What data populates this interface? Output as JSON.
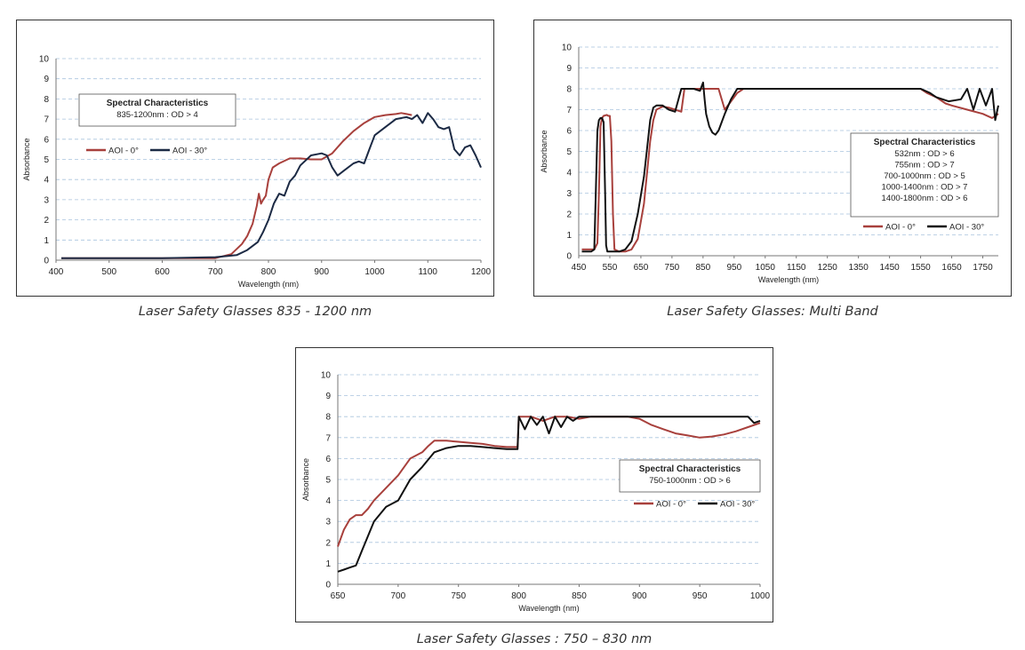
{
  "captions": [
    "Laser Safety Glasses 835 - 1200 nm",
    "Laser Safety Glasses: Multi Band",
    "Laser Safety Glasses : 750 – 830 nm"
  ],
  "chart_data": [
    {
      "type": "line",
      "xlabel": "Wavelength (nm)",
      "ylabel": "Absorbance",
      "xlim": [
        400,
        1200
      ],
      "ylim": [
        0,
        10
      ],
      "xticks": [
        400,
        500,
        600,
        700,
        800,
        900,
        1000,
        1100,
        1200
      ],
      "yticks": [
        0,
        1,
        2,
        3,
        4,
        5,
        6,
        7,
        8,
        9,
        10
      ],
      "grid": true,
      "legend_position": "left",
      "box": {
        "title": "Spectral Characteristics",
        "lines": [
          "835-1200nm : OD > 4"
        ]
      },
      "series": [
        {
          "name": "AOI - 0°",
          "color": "#a8403c",
          "x": [
            410,
            450,
            500,
            600,
            700,
            730,
            750,
            760,
            770,
            778,
            782,
            786,
            790,
            795,
            800,
            808,
            820,
            840,
            860,
            880,
            900,
            920,
            940,
            960,
            980,
            1000,
            1020,
            1040,
            1050,
            1060,
            1070
          ],
          "y": [
            0.1,
            0.1,
            0.1,
            0.1,
            0.1,
            0.3,
            0.8,
            1.2,
            1.8,
            2.7,
            3.3,
            2.8,
            3.0,
            3.2,
            4.0,
            4.6,
            4.8,
            5.05,
            5.05,
            5.0,
            5.0,
            5.3,
            5.9,
            6.4,
            6.8,
            7.1,
            7.2,
            7.25,
            7.3,
            7.25,
            7.2
          ]
        },
        {
          "name": "AOI - 30°",
          "color": "#1c2a44",
          "x": [
            410,
            450,
            500,
            600,
            700,
            740,
            760,
            780,
            790,
            800,
            810,
            820,
            830,
            840,
            850,
            860,
            880,
            900,
            910,
            920,
            930,
            940,
            960,
            970,
            980,
            990,
            1000,
            1020,
            1040,
            1060,
            1070,
            1080,
            1090,
            1100,
            1110,
            1120,
            1130,
            1140,
            1150,
            1160,
            1170,
            1180,
            1190,
            1200
          ],
          "y": [
            0.1,
            0.1,
            0.1,
            0.1,
            0.15,
            0.25,
            0.5,
            0.9,
            1.4,
            2.0,
            2.8,
            3.3,
            3.2,
            3.9,
            4.2,
            4.7,
            5.2,
            5.3,
            5.2,
            4.6,
            4.2,
            4.4,
            4.8,
            4.9,
            4.8,
            5.5,
            6.2,
            6.6,
            7.0,
            7.1,
            7.0,
            7.2,
            6.8,
            7.3,
            7.0,
            6.6,
            6.5,
            6.6,
            5.5,
            5.2,
            5.6,
            5.7,
            5.2,
            4.6
          ]
        }
      ]
    },
    {
      "type": "line",
      "xlabel": "Wavelength (nm)",
      "ylabel": "Absorbance",
      "xlim": [
        450,
        1800
      ],
      "ylim": [
        0,
        10
      ],
      "xticks": [
        450,
        550,
        650,
        750,
        850,
        950,
        1050,
        1150,
        1250,
        1350,
        1450,
        1550,
        1650,
        1750
      ],
      "yticks": [
        0,
        1,
        2,
        3,
        4,
        5,
        6,
        7,
        8,
        9,
        10
      ],
      "grid": true,
      "legend_position": "bottom-right",
      "box": {
        "title": "Spectral Characteristics",
        "lines": [
          "532nm : OD > 6",
          "755nm : OD > 7",
          "700-1000nm : OD > 5",
          "1000-1400nm : OD > 7",
          "1400-1800nm : OD > 6"
        ]
      },
      "series": [
        {
          "name": "AOI - 0°",
          "color": "#a8403c",
          "x": [
            460,
            500,
            510,
            515,
            520,
            525,
            530,
            540,
            545,
            550,
            555,
            560,
            565,
            580,
            600,
            620,
            640,
            660,
            670,
            680,
            690,
            700,
            720,
            740,
            760,
            780,
            790,
            800,
            810,
            830,
            850,
            870,
            880,
            900,
            920,
            940,
            960,
            980,
            1000,
            1100,
            1200,
            1300,
            1400,
            1500,
            1550,
            1570,
            1600,
            1630,
            1650,
            1700,
            1750,
            1780,
            1800
          ],
          "y": [
            0.3,
            0.3,
            0.6,
            3.0,
            6.2,
            6.6,
            6.7,
            6.75,
            6.7,
            6.7,
            5.5,
            2.0,
            0.3,
            0.2,
            0.2,
            0.3,
            0.8,
            2.5,
            4.0,
            5.5,
            6.5,
            7.0,
            7.15,
            7.1,
            7.0,
            6.9,
            8.0,
            8.0,
            8.0,
            8.0,
            8.0,
            8.0,
            8.0,
            8.0,
            7.0,
            7.4,
            7.8,
            8.0,
            8.0,
            8.0,
            8.0,
            8.0,
            8.0,
            8.0,
            8.0,
            7.8,
            7.6,
            7.3,
            7.2,
            7.0,
            6.8,
            6.6,
            6.8
          ]
        },
        {
          "name": "AOI - 30°",
          "color": "#111111",
          "x": [
            460,
            490,
            500,
            505,
            510,
            515,
            520,
            525,
            530,
            535,
            538,
            542,
            546,
            550,
            560,
            580,
            600,
            620,
            640,
            660,
            680,
            690,
            700,
            720,
            740,
            760,
            780,
            790,
            800,
            820,
            840,
            850,
            855,
            860,
            870,
            880,
            890,
            900,
            920,
            940,
            960,
            980,
            1000,
            1100,
            1200,
            1300,
            1400,
            1500,
            1550,
            1580,
            1600,
            1640,
            1680,
            1700,
            1720,
            1740,
            1760,
            1780,
            1790,
            1800
          ],
          "y": [
            0.2,
            0.2,
            0.3,
            3.0,
            6.0,
            6.5,
            6.6,
            6.6,
            6.4,
            3.0,
            0.5,
            0.2,
            0.2,
            0.2,
            0.2,
            0.2,
            0.3,
            0.7,
            2.0,
            3.8,
            6.5,
            7.1,
            7.2,
            7.2,
            7.0,
            6.9,
            8.0,
            8.0,
            8.0,
            8.0,
            7.9,
            8.3,
            7.5,
            6.8,
            6.2,
            5.9,
            5.8,
            6.0,
            6.8,
            7.5,
            8.0,
            8.0,
            8.0,
            8.0,
            8.0,
            8.0,
            8.0,
            8.0,
            8.0,
            7.8,
            7.6,
            7.4,
            7.5,
            8.0,
            7.0,
            8.0,
            7.2,
            8.0,
            6.5,
            7.2
          ]
        }
      ]
    },
    {
      "type": "line",
      "xlabel": "Wavelength (nm)",
      "ylabel": "Absorbance",
      "xlim": [
        650,
        1000
      ],
      "ylim": [
        0,
        10
      ],
      "xticks": [
        650,
        700,
        750,
        800,
        850,
        900,
        950,
        1000
      ],
      "yticks": [
        0,
        1,
        2,
        3,
        4,
        5,
        6,
        7,
        8,
        9,
        10
      ],
      "grid": true,
      "legend_position": "right",
      "box": {
        "title": "Spectral Characteristics",
        "lines": [
          "750-1000nm : OD > 6"
        ]
      },
      "series": [
        {
          "name": "AOI - 0°",
          "color": "#a8403c",
          "x": [
            650,
            655,
            660,
            665,
            670,
            675,
            680,
            690,
            700,
            710,
            720,
            725,
            730,
            740,
            750,
            760,
            770,
            780,
            790,
            799,
            800,
            810,
            820,
            830,
            840,
            850,
            860,
            870,
            880,
            890,
            900,
            910,
            920,
            930,
            940,
            950,
            960,
            970,
            980,
            990,
            1000
          ],
          "y": [
            1.8,
            2.6,
            3.1,
            3.3,
            3.3,
            3.6,
            4.0,
            4.6,
            5.2,
            6.0,
            6.3,
            6.6,
            6.85,
            6.85,
            6.8,
            6.75,
            6.7,
            6.6,
            6.55,
            6.55,
            8.0,
            8.0,
            7.8,
            8.0,
            8.0,
            7.9,
            8.0,
            8.0,
            8.0,
            8.0,
            7.9,
            7.6,
            7.4,
            7.2,
            7.1,
            7.0,
            7.05,
            7.15,
            7.3,
            7.5,
            7.7
          ]
        },
        {
          "name": "AOI - 30°",
          "color": "#111111",
          "x": [
            650,
            655,
            660,
            665,
            670,
            680,
            690,
            700,
            710,
            720,
            730,
            740,
            750,
            760,
            770,
            780,
            790,
            799,
            800,
            805,
            810,
            815,
            820,
            825,
            830,
            835,
            840,
            845,
            850,
            860,
            870,
            880,
            890,
            900,
            920,
            940,
            960,
            980,
            990,
            995,
            1000
          ],
          "y": [
            0.6,
            0.7,
            0.8,
            0.9,
            1.6,
            3.0,
            3.7,
            4.0,
            5.0,
            5.6,
            6.3,
            6.5,
            6.6,
            6.6,
            6.55,
            6.5,
            6.45,
            6.45,
            8.0,
            7.4,
            8.0,
            7.6,
            8.0,
            7.2,
            8.0,
            7.5,
            8.0,
            7.8,
            8.0,
            8.0,
            8.0,
            8.0,
            8.0,
            8.0,
            8.0,
            8.0,
            8.0,
            8.0,
            8.0,
            7.7,
            7.8
          ]
        }
      ]
    }
  ]
}
